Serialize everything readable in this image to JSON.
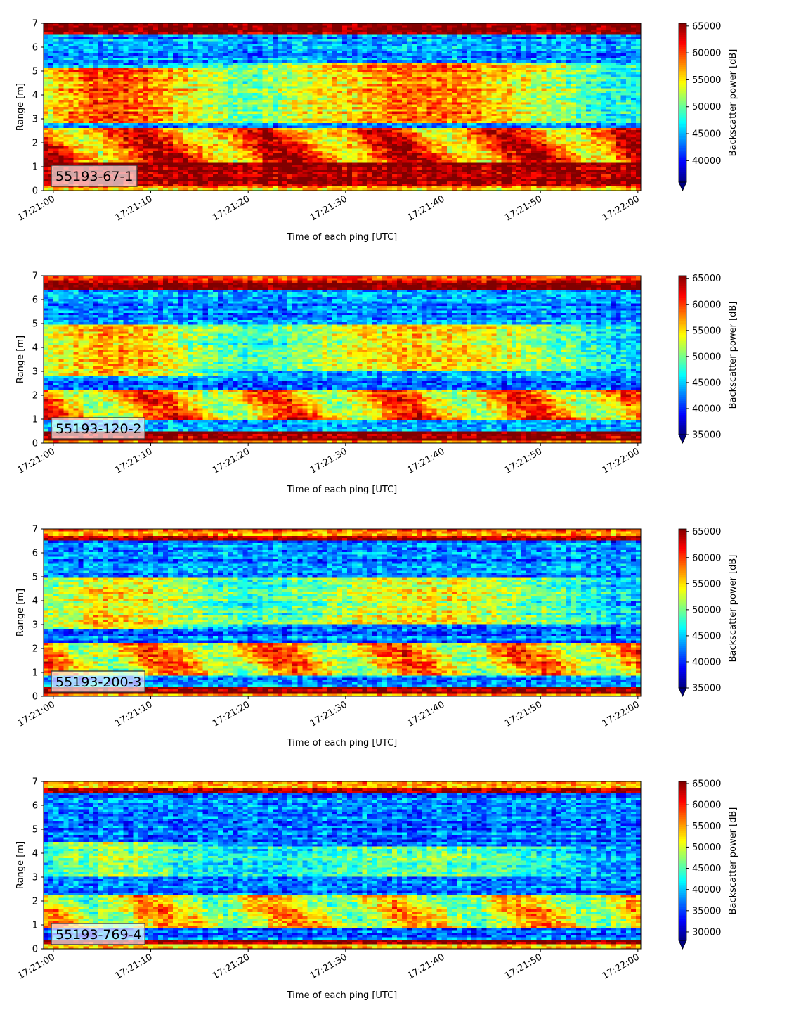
{
  "chart_data": [
    {
      "type": "heatmap",
      "label": "55193-67-1",
      "xlabel": "Time of each ping [UTC]",
      "ylabel": "Range [m]",
      "colorbar_label": "Backscatter power [dB]",
      "colormap": "jet",
      "xticks": [
        "17:21:00",
        "17:21:10",
        "17:21:20",
        "17:21:30",
        "17:21:40",
        "17:21:50",
        "17:22:00"
      ],
      "xlim_seconds": [
        -1,
        60.3
      ],
      "yticks": [
        0,
        1,
        2,
        3,
        4,
        5,
        6,
        7
      ],
      "ylim": [
        0,
        7
      ],
      "clim": [
        36000,
        65500
      ],
      "cticks": [
        40000,
        45000,
        50000,
        55000,
        60000,
        65000
      ],
      "features": {
        "top_band": [
          6.5,
          7.0
        ],
        "bottom_band": [
          0.2,
          1.2
        ],
        "mid_layer": [
          1.2,
          2.6
        ],
        "school_early": [
          2.8,
          5.2
        ],
        "school_late": [
          2.8,
          5.3
        ],
        "overall_intensity": 0.78
      }
    },
    {
      "type": "heatmap",
      "label": "55193-120-2",
      "xlabel": "Time of each ping [UTC]",
      "ylabel": "Range [m]",
      "colorbar_label": "Backscatter power [dB]",
      "colormap": "jet",
      "xticks": [
        "17:21:00",
        "17:21:10",
        "17:21:20",
        "17:21:30",
        "17:21:40",
        "17:21:50",
        "17:22:00"
      ],
      "xlim_seconds": [
        -1,
        60.3
      ],
      "yticks": [
        0,
        1,
        2,
        3,
        4,
        5,
        6,
        7
      ],
      "ylim": [
        0,
        7
      ],
      "clim": [
        35000,
        65500
      ],
      "cticks": [
        35000,
        40000,
        45000,
        50000,
        55000,
        60000,
        65000
      ],
      "features": {
        "top_band": [
          6.4,
          6.8
        ],
        "bottom_band": [
          0.1,
          0.5
        ],
        "mid_layer": [
          1.0,
          2.2
        ],
        "school_early": [
          2.8,
          5.0
        ],
        "school_late": [
          3.0,
          5.0
        ],
        "overall_intensity": 0.62
      }
    },
    {
      "type": "heatmap",
      "label": "55193-200-3",
      "xlabel": "Time of each ping [UTC]",
      "ylabel": "Range [m]",
      "colorbar_label": "Backscatter power [dB]",
      "colormap": "jet",
      "xticks": [
        "17:21:00",
        "17:21:10",
        "17:21:20",
        "17:21:30",
        "17:21:40",
        "17:21:50",
        "17:22:00"
      ],
      "xlim_seconds": [
        -1,
        60.3
      ],
      "yticks": [
        0,
        1,
        2,
        3,
        4,
        5,
        6,
        7
      ],
      "ylim": [
        0,
        7
      ],
      "clim": [
        35000,
        65500
      ],
      "cticks": [
        35000,
        40000,
        45000,
        50000,
        55000,
        60000,
        65000
      ],
      "features": {
        "top_band": [
          6.5,
          6.7
        ],
        "bottom_band": [
          0.1,
          0.4
        ],
        "mid_layer": [
          0.9,
          2.2
        ],
        "school_early": [
          2.8,
          5.0
        ],
        "school_late": [
          3.0,
          5.0
        ],
        "overall_intensity": 0.55
      }
    },
    {
      "type": "heatmap",
      "label": "55193-769-4",
      "xlabel": "Time of each ping [UTC]",
      "ylabel": "Range [m]",
      "colorbar_label": "Backscatter power [dB]",
      "colormap": "jet",
      "xticks": [
        "17:21:00",
        "17:21:10",
        "17:21:20",
        "17:21:30",
        "17:21:40",
        "17:21:50",
        "17:22:00"
      ],
      "xlim_seconds": [
        -1,
        60.3
      ],
      "yticks": [
        0,
        1,
        2,
        3,
        4,
        5,
        6,
        7
      ],
      "ylim": [
        0,
        7
      ],
      "clim": [
        28000,
        65500
      ],
      "cticks": [
        30000,
        35000,
        40000,
        45000,
        50000,
        55000,
        60000,
        65000
      ],
      "features": {
        "top_band": [
          6.5,
          6.7
        ],
        "bottom_band": [
          0.15,
          0.35
        ],
        "mid_layer": [
          0.9,
          2.2
        ],
        "school_early": [
          3.0,
          4.5
        ],
        "school_late": [
          3.0,
          4.3
        ],
        "overall_intensity": 0.38
      }
    }
  ]
}
